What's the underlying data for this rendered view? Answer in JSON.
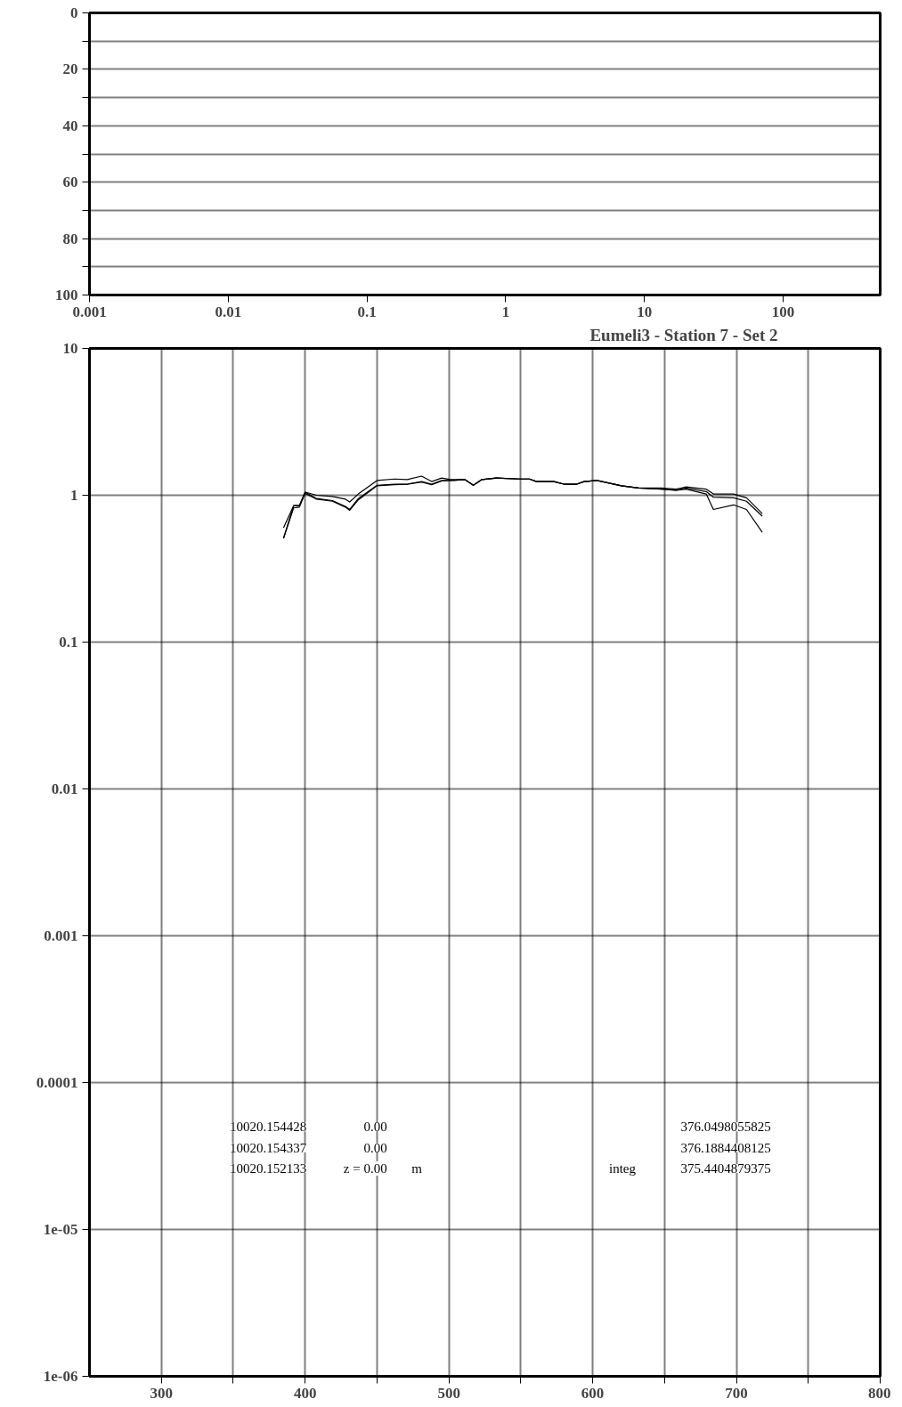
{
  "chart_data": [
    {
      "type": "line",
      "xlim": [
        0.001,
        500
      ],
      "ylim": [
        100,
        0
      ],
      "log": "x",
      "xticks": [
        0.001,
        0.01,
        0.1,
        1,
        10,
        100
      ],
      "yticks": [
        0,
        {
          "value": 10,
          "label": null
        },
        20,
        {
          "value": 30,
          "label": null
        },
        40,
        {
          "value": 50,
          "label": null
        },
        60,
        {
          "value": 70,
          "label": null
        },
        80,
        {
          "value": 90,
          "label": null
        },
        100
      ],
      "grid": "y"
    },
    {
      "type": "line",
      "title": "Eumeli3 - Station 7 - Set 2",
      "log": "y",
      "grid": true,
      "line_style": "solid",
      "x": [
        385,
        392,
        396,
        400,
        408,
        419,
        428,
        431,
        437,
        450,
        462,
        471,
        481,
        488,
        495,
        501,
        511,
        517,
        523,
        533,
        549,
        556,
        561,
        573,
        580,
        589,
        594,
        603,
        620,
        632,
        648,
        658,
        665,
        679,
        684,
        698,
        707,
        718
      ],
      "series": [
        {
          "color": "#000000",
          "values": [
            0.6,
            0.85,
            0.85,
            1.05,
            1.0,
            0.98,
            0.94,
            0.9,
            1.02,
            1.26,
            1.29,
            1.28,
            1.35,
            1.24,
            1.31,
            1.28,
            1.28,
            1.17,
            1.28,
            1.31,
            1.29,
            1.29,
            1.24,
            1.24,
            1.19,
            1.19,
            1.24,
            1.26,
            1.16,
            1.12,
            1.12,
            1.1,
            1.14,
            1.1,
            1.02,
            1.02,
            0.96,
            0.75
          ]
        },
        {
          "color": "#000000",
          "values": [
            0.51,
            0.85,
            0.85,
            1.05,
            0.95,
            0.92,
            0.84,
            0.8,
            0.95,
            1.17,
            1.19,
            1.19,
            1.24,
            1.19,
            1.26,
            1.26,
            1.28,
            1.17,
            1.28,
            1.31,
            1.29,
            1.29,
            1.24,
            1.24,
            1.19,
            1.19,
            1.24,
            1.26,
            1.16,
            1.12,
            1.1,
            1.08,
            1.12,
            1.06,
            0.97,
            0.96,
            0.91,
            0.72
          ]
        },
        {
          "color": "#000000",
          "values": [
            0.51,
            0.82,
            0.83,
            1.03,
            0.94,
            0.91,
            0.83,
            0.79,
            0.93,
            1.16,
            1.18,
            1.19,
            1.23,
            1.18,
            1.25,
            1.26,
            1.28,
            1.17,
            1.28,
            1.31,
            1.29,
            1.29,
            1.24,
            1.24,
            1.19,
            1.19,
            1.24,
            1.26,
            1.16,
            1.12,
            1.1,
            1.08,
            1.1,
            1.02,
            0.8,
            0.86,
            0.8,
            0.56
          ]
        }
      ],
      "xlim": [
        250,
        800
      ],
      "ylim": [
        1e-06,
        10
      ],
      "xticks": [
        300,
        {
          "value": 350,
          "label": null
        },
        400,
        {
          "value": 450,
          "label": null
        },
        500,
        {
          "value": 550,
          "label": null
        },
        600,
        {
          "value": 650,
          "label": null
        },
        700,
        {
          "value": 750,
          "label": null
        },
        800
      ],
      "yticks": [
        {
          "value": 1e-06,
          "label": "1e-06"
        },
        {
          "value": 1e-05,
          "label": "1e-05"
        },
        0.0001,
        0.001,
        0.01,
        0.1,
        1,
        10
      ],
      "annotations": [
        "10020.154428",
        "0.00",
        "376.0498055825",
        "10020.154337",
        "0.00",
        "376.1884408125",
        "10020.152133",
        "z = 0.00",
        "m",
        "integ",
        "375.4404879375"
      ]
    }
  ]
}
